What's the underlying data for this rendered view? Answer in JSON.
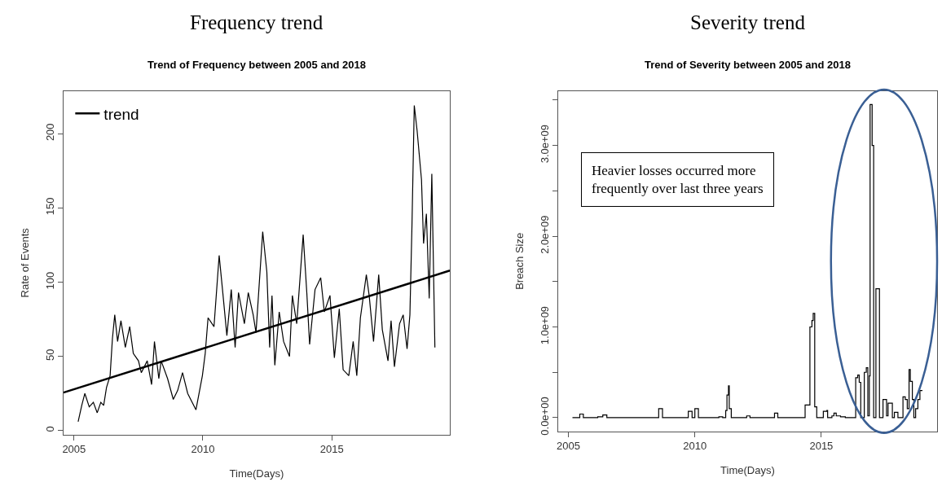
{
  "chart_data": [
    {
      "type": "line",
      "title": "Frequency trend",
      "subtitle": "Trend of Frequency between 2005 and 2018",
      "xlabel": "Time(Days)",
      "ylabel": "Rate of Events",
      "xlim": [
        2004.59,
        2019.58
      ],
      "ylim": [
        -2.6,
        228.6
      ],
      "xticks": [
        2005,
        2010,
        2015
      ],
      "yticks": [
        0,
        50,
        100,
        150,
        200
      ],
      "legend": "top left",
      "series": [
        {
          "color": "#000000",
          "x": [
            2005.16,
            2005.3,
            2005.42,
            2005.59,
            2005.75,
            2005.9,
            2006.04,
            2006.15,
            2006.26,
            2006.4,
            2006.49,
            2006.58,
            2006.69,
            2006.82,
            2006.99,
            2007.16,
            2007.3,
            2007.5,
            2007.61,
            2007.84,
            2008.01,
            2008.12,
            2008.29,
            2008.38,
            2008.63,
            2008.85,
            2009.02,
            2009.21,
            2009.41,
            2009.73,
            2009.98,
            2010.09,
            2010.2,
            2010.43,
            2010.63,
            2010.76,
            2010.93,
            2011.1,
            2011.25,
            2011.38,
            2011.61,
            2011.76,
            2011.95,
            2012.06,
            2012.32,
            2012.48,
            2012.59,
            2012.68,
            2012.79,
            2012.96,
            2013.13,
            2013.36,
            2013.47,
            2013.64,
            2013.89,
            2014.03,
            2014.14,
            2014.35,
            2014.57,
            2014.71,
            2014.93,
            2015.1,
            2015.29,
            2015.44,
            2015.66,
            2015.83,
            2015.97,
            2016.11,
            2016.34,
            2016.45,
            2016.62,
            2016.82,
            2016.96,
            2017.18,
            2017.3,
            2017.43,
            2017.63,
            2017.77,
            2017.92,
            2018.03,
            2018.11,
            2018.2,
            2018.31,
            2018.48,
            2018.56,
            2018.67,
            2018.78,
            2018.88,
            2019.0
          ],
          "values": [
            6,
            17,
            25,
            16,
            19,
            12,
            19,
            17,
            29,
            37,
            62,
            78,
            60,
            74,
            56,
            70,
            52,
            47,
            39,
            47,
            31,
            60,
            35,
            47,
            35,
            21,
            27,
            39,
            25,
            14,
            37,
            52,
            76,
            70,
            118,
            95,
            64,
            95,
            56,
            93,
            72,
            93,
            78,
            66,
            134,
            107,
            56,
            91,
            44,
            80,
            60,
            50,
            91,
            72,
            132,
            93,
            58,
            95,
            103,
            80,
            91,
            49,
            82,
            41,
            37,
            60,
            37,
            76,
            105,
            91,
            60,
            105,
            68,
            47,
            74,
            43,
            72,
            78,
            55,
            78,
            138,
            219,
            202,
            169,
            126,
            146,
            89,
            173,
            56
          ]
        },
        {
          "name": "trend",
          "color": "#000000",
          "x": [
            2004.59,
            2019.58
          ],
          "values": [
            25.6,
            107.8
          ]
        }
      ]
    },
    {
      "type": "step",
      "title": "Severity trend",
      "subtitle": "Trend of Severity between 2005 and 2018",
      "xlabel": "Time(Days)",
      "ylabel": "Breach Size",
      "xlim": [
        2004.59,
        2019.58
      ],
      "ylim": [
        -149000000,
        3597000000
      ],
      "xticks": [
        2005,
        2010,
        2015
      ],
      "yticks": [
        {
          "value": 0,
          "label": "0.0e+00"
        },
        {
          "value": 500000000,
          "label": null
        },
        {
          "value": 1000000000,
          "label": "1.0e+09"
        },
        {
          "value": 1500000000,
          "label": null
        },
        {
          "value": 2000000000,
          "label": "2.0e+09"
        },
        {
          "value": 2500000000,
          "label": null
        },
        {
          "value": 3000000000,
          "label": "3.0e+09"
        },
        {
          "value": 3500000000,
          "label": null
        }
      ],
      "annotations": [
        "Heavier losses occurred more\nfrequently over last three years"
      ],
      "series": [
        {
          "color": "#000000",
          "x": [
            2005.16,
            2005.45,
            2005.59,
            2006.16,
            2006.36,
            2006.52,
            2008.57,
            2008.72,
            2009.74,
            2009.89,
            2010.0,
            2010.14,
            2010.95,
            2011.1,
            2011.22,
            2011.27,
            2011.33,
            2011.36,
            2011.44,
            2012.05,
            2012.18,
            2013.15,
            2013.28,
            2014.36,
            2014.55,
            2014.63,
            2014.68,
            2014.74,
            2014.82,
            2015.08,
            2015.22,
            2015.25,
            2015.42,
            2015.5,
            2015.59,
            2015.76,
            2015.95,
            2016.36,
            2016.44,
            2016.5,
            2016.56,
            2016.7,
            2016.78,
            2016.84,
            2016.9,
            2016.93,
            2017.01,
            2017.07,
            2017.16,
            2017.3,
            2017.44,
            2017.58,
            2017.64,
            2017.81,
            2017.89,
            2018.03,
            2018.23,
            2018.32,
            2018.4,
            2018.47,
            2018.52,
            2018.6,
            2018.66,
            2018.73,
            2018.82,
            2018.9,
            2019.0
          ],
          "values": [
            0,
            40000000,
            0,
            10000000,
            30000000,
            0,
            100000000,
            0,
            70000000,
            0,
            100000000,
            0,
            10000000,
            0,
            80000000,
            250000000,
            350000000,
            100000000,
            0,
            20000000,
            0,
            50000000,
            0,
            140000000,
            1000000000,
            1070000000,
            1150000000,
            120000000,
            0,
            70000000,
            80000000,
            0,
            20000000,
            50000000,
            20000000,
            10000000,
            0,
            440000000,
            470000000,
            390000000,
            0,
            500000000,
            550000000,
            20000000,
            460000000,
            3450000000,
            3000000000,
            0,
            1420000000,
            0,
            200000000,
            20000000,
            160000000,
            0,
            60000000,
            0,
            230000000,
            200000000,
            100000000,
            530000000,
            400000000,
            200000000,
            0,
            100000000,
            200000000,
            300000000,
            300000000
          ]
        }
      ]
    }
  ]
}
